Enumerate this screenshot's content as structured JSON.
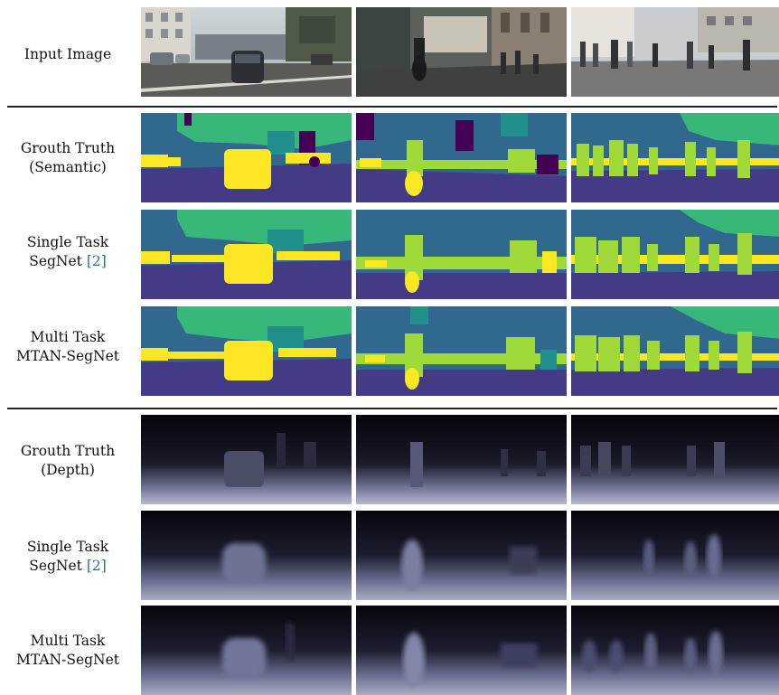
{
  "rows": [
    {
      "label_lines": [
        "Input Image"
      ]
    },
    {
      "label_lines": [
        "Grouth Truth",
        "(Semantic)"
      ]
    },
    {
      "label_lines": [
        "Single Task",
        "SegNet"
      ],
      "citation": "[2]"
    },
    {
      "label_lines": [
        "Multi Task",
        "MTAN-SegNet"
      ]
    },
    {
      "label_lines": [
        "Grouth Truth",
        "(Depth)"
      ]
    },
    {
      "label_lines": [
        "Single Task",
        "SegNet"
      ],
      "citation": "[2]"
    },
    {
      "label_lines": [
        "Multi Task",
        "MTAN-SegNet"
      ]
    }
  ],
  "palette": {
    "semantic_road": "#433b85",
    "semantic_building": "#31688e",
    "semantic_vegetation": "#21908c",
    "semantic_sky": "#37b779",
    "semantic_vehicle": "#fde725",
    "semantic_person": "#a0da39",
    "semantic_void": "#440154",
    "depth_far": "#05050c",
    "depth_near": "#8a8fb0"
  }
}
